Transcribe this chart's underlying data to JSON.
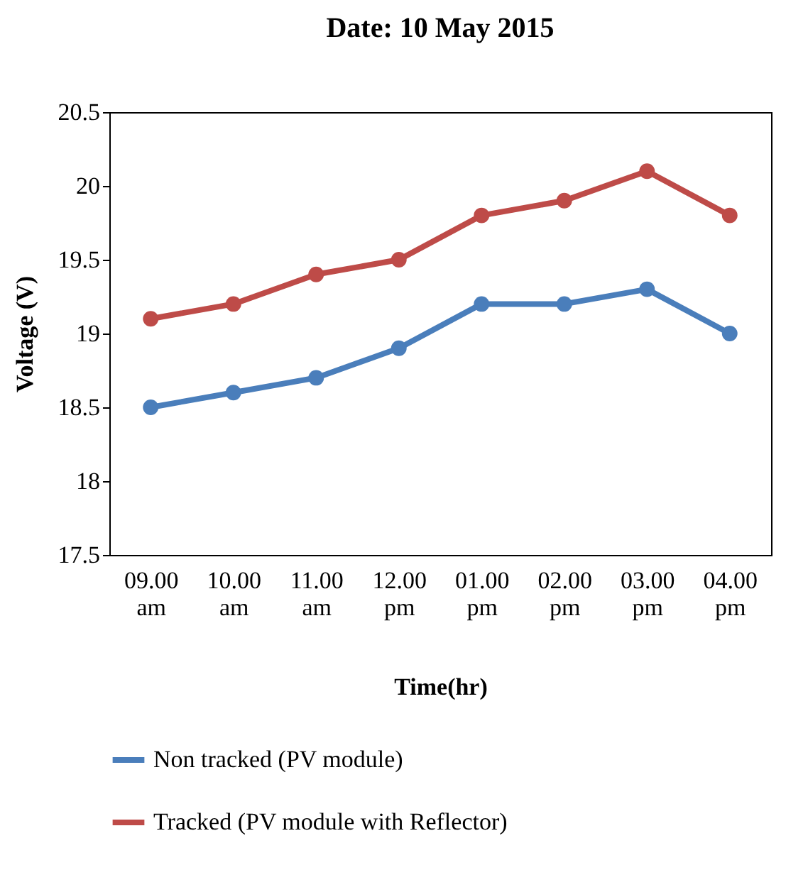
{
  "chart_data": {
    "type": "line",
    "title": "Date: 10 May 2015",
    "xlabel": "Time(hr)",
    "ylabel": "Voltage (V)",
    "categories": [
      "09.00 am",
      "10.00 am",
      "11.00 am",
      "12.00 pm",
      "01.00 pm",
      "02.00 pm",
      "03.00 pm",
      "04.00 pm"
    ],
    "series": [
      {
        "name": "Non tracked (PV module)",
        "color": "#4a7ebb",
        "values": [
          18.5,
          18.6,
          18.7,
          18.9,
          19.2,
          19.2,
          19.3,
          19.0
        ]
      },
      {
        "name": "Tracked (PV module with Reflector)",
        "color": "#be4b48",
        "values": [
          19.1,
          19.2,
          19.4,
          19.5,
          19.8,
          19.9,
          20.1,
          19.8
        ]
      }
    ],
    "ylim": [
      17.5,
      20.5
    ],
    "yticks": [
      17.5,
      18,
      18.5,
      19,
      19.5,
      20,
      20.5
    ],
    "grid": false,
    "legend": "bottom",
    "marker": "circle",
    "line_style": "solid"
  }
}
